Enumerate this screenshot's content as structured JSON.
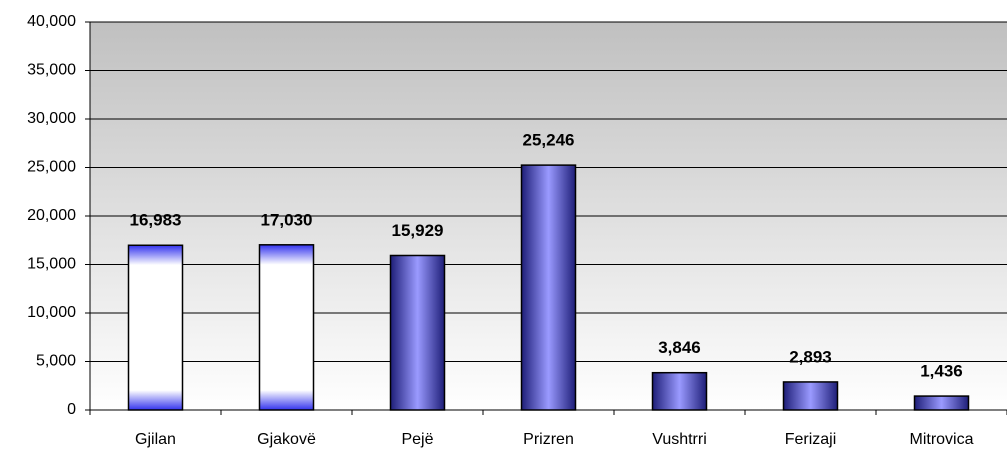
{
  "chart_data": {
    "type": "bar",
    "categories": [
      "Gjilan",
      "Gjakovë",
      "Pejë",
      "Prizren",
      "Vushtrri",
      "Ferizaji",
      "Mitrovica"
    ],
    "values": [
      16983,
      17030,
      15929,
      25246,
      3846,
      2893,
      1436
    ],
    "value_labels": [
      "16,983",
      "17,030",
      "15,929",
      "25,246",
      "3,846",
      "2,893",
      "1,436"
    ],
    "colors": [
      "#ffffff",
      "#ffffff",
      "#1e1e78",
      "#1e1e78",
      "#1e1e78",
      "#1e1e78",
      "#1e1e78"
    ],
    "ylim": [
      0,
      40000
    ],
    "yticks": [
      {
        "value": 0,
        "label": "0"
      },
      {
        "value": 5000,
        "label": "5,000"
      },
      {
        "value": 10000,
        "label": "10,000"
      },
      {
        "value": 15000,
        "label": "15,000"
      },
      {
        "value": 20000,
        "label": "20,000"
      },
      {
        "value": 25000,
        "label": "25,000"
      },
      {
        "value": 30000,
        "label": "30,000"
      },
      {
        "value": 35000,
        "label": "35,000"
      },
      {
        "value": 40000,
        "label": "40,000"
      }
    ],
    "grid": true
  }
}
